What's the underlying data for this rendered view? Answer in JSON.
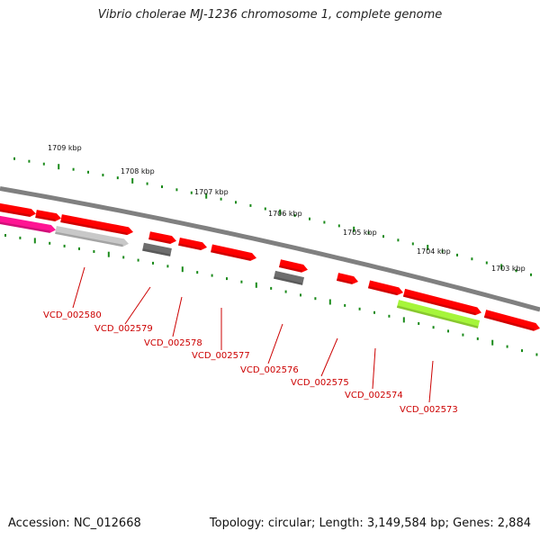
{
  "title": "Vibrio cholerae MJ-1236 chromosome 1, complete genome",
  "footer": {
    "accession": "Accession: NC_012668",
    "summary": "Topology: circular; Length: 3,149,584 bp; Genes: 2,884"
  },
  "colors": {
    "backbone": "#808080",
    "tick": "#1a8a1a",
    "gene_red": "#ff0000",
    "gene_magenta": "#ff1493",
    "gene_lightgray": "#c8c8c8",
    "gene_darkgray": "#6e6e6e",
    "gene_lime": "#a6f53a",
    "label_red": "#cc0000"
  },
  "kbp_labels": [
    "1709 kbp",
    "1708 kbp",
    "1707 kbp",
    "1706 kbp",
    "1705 kbp",
    "1704 kbp",
    "1703 kbp"
  ],
  "gene_labels": [
    "VCD_002580",
    "VCD_002579",
    "VCD_002578",
    "VCD_002577",
    "VCD_002576",
    "VCD_002575",
    "VCD_002574",
    "VCD_002573"
  ]
}
